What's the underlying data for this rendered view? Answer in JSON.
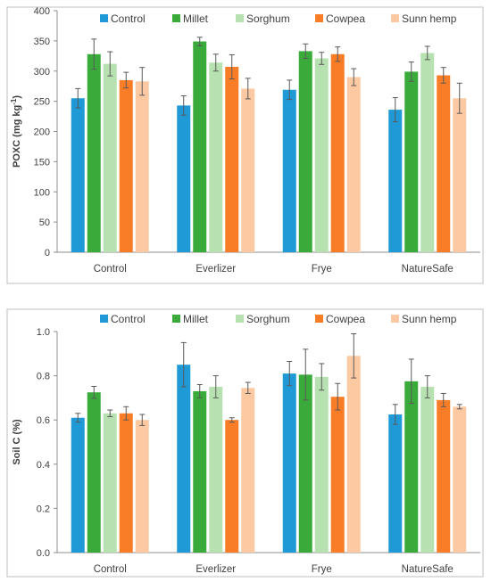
{
  "colors": {
    "Control": "#1f9ad6",
    "Millet": "#3aab3a",
    "Sorghum": "#b7e1b0",
    "Cowpea": "#f97c26",
    "Sunn hemp": "#fcc9a2"
  },
  "chart_data": [
    {
      "type": "bar",
      "ylabel": "POXC (mg kg",
      "ylabel_superscript": "-1",
      "ylabel_close": ")",
      "ylim": [
        0,
        400
      ],
      "yticks": [
        "0",
        "50",
        "100",
        "150",
        "200",
        "250",
        "300",
        "350",
        "400"
      ],
      "ytick_values": [
        0,
        50,
        100,
        150,
        200,
        250,
        300,
        350,
        400
      ],
      "legend_position": "top",
      "categories": [
        "Control",
        "Everlizer",
        "Frye",
        "NatureSafe"
      ],
      "series": [
        {
          "name": "Control",
          "values": [
            255,
            243,
            269,
            236
          ],
          "errors": [
            16,
            16,
            16,
            20
          ]
        },
        {
          "name": "Millet",
          "values": [
            328,
            349,
            333,
            299
          ],
          "errors": [
            25,
            7,
            12,
            16
          ]
        },
        {
          "name": "Sorghum",
          "values": [
            312,
            314,
            321,
            330
          ],
          "errors": [
            20,
            14,
            10,
            11
          ]
        },
        {
          "name": "Cowpea",
          "values": [
            285,
            307,
            328,
            293
          ],
          "errors": [
            13,
            20,
            12,
            13
          ]
        },
        {
          "name": "Sunn hemp",
          "values": [
            283,
            271,
            290,
            255
          ],
          "errors": [
            23,
            17,
            14,
            25
          ]
        }
      ]
    },
    {
      "type": "bar",
      "ylabel": "Soil C (%)",
      "ylim": [
        0,
        1.0
      ],
      "yticks": [
        "0.0",
        "0.2",
        "0.4",
        "0.6",
        "0.8",
        "1.0"
      ],
      "ytick_values": [
        0,
        0.2,
        0.4,
        0.6,
        0.8,
        1.0
      ],
      "legend_position": "top",
      "categories": [
        "Control",
        "Everlizer",
        "Frye",
        "NatureSafe"
      ],
      "series": [
        {
          "name": "Control",
          "values": [
            0.61,
            0.85,
            0.81,
            0.625
          ],
          "errors": [
            0.02,
            0.1,
            0.055,
            0.045
          ]
        },
        {
          "name": "Millet",
          "values": [
            0.725,
            0.73,
            0.805,
            0.775
          ],
          "errors": [
            0.027,
            0.03,
            0.115,
            0.1
          ]
        },
        {
          "name": "Sorghum",
          "values": [
            0.63,
            0.75,
            0.795,
            0.75
          ],
          "errors": [
            0.015,
            0.05,
            0.06,
            0.05
          ]
        },
        {
          "name": "Cowpea",
          "values": [
            0.63,
            0.6,
            0.705,
            0.69
          ],
          "errors": [
            0.03,
            0.01,
            0.06,
            0.03
          ]
        },
        {
          "name": "Sunn hemp",
          "values": [
            0.6,
            0.745,
            0.89,
            0.66
          ],
          "errors": [
            0.025,
            0.025,
            0.1,
            0.01
          ]
        }
      ]
    }
  ]
}
